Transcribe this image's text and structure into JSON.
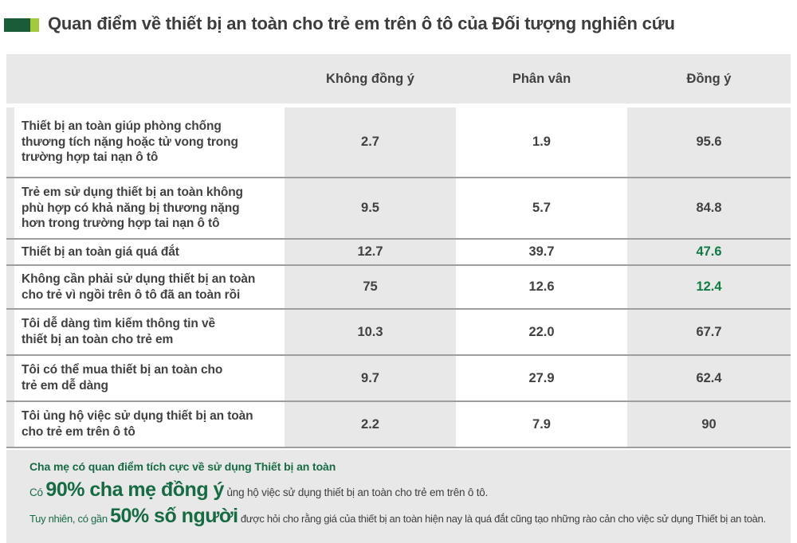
{
  "title": "Quan điểm về thiết bị an toàn cho trẻ em trên ô tô của Đối tượng nghiên cứu",
  "colors": {
    "icon_dark_green": "#1a5c38",
    "icon_light_green": "#a3ca3c",
    "table_background_gray": "#e8e8e8",
    "text_dark_gray": "#414141",
    "highlight_value_green": "#107c44",
    "footer_green": "#176b43",
    "row_divider_gray": "#9e9e9e"
  },
  "table": {
    "columns": [
      "Không đồng ý",
      "Phân vân",
      "Đồng ý"
    ],
    "rows": [
      {
        "label": "Thiết bị an toàn giúp phòng chống\nthương tích nặng hoặc tử vong trong\ntrường hợp tai nạn ô tô",
        "disagree": "2.7",
        "neutral": "1.9",
        "agree": "95.6"
      },
      {
        "label": "Trẻ em sử dụng thiết bị an toàn không\nphù hợp có khả năng bị thương nặng\nhơn trong trường hợp tai nạn ô tô",
        "disagree": "9.5",
        "neutral": "5.7",
        "agree": "84.8"
      },
      {
        "label": "Thiết bị an toàn giá quá đắt",
        "disagree": "12.7",
        "neutral": "39.7",
        "agree": "47.6"
      },
      {
        "label": "Không cần phải sử dụng thiết bị an toàn\ncho trẻ vì ngồi trên ô tô đã an toàn rồi",
        "disagree": "75",
        "neutral": "12.6",
        "agree": "12.4"
      },
      {
        "label": "Tôi dễ dàng tìm kiếm thông tin về\nthiết bị an toàn cho trẻ em",
        "disagree": "10.3",
        "neutral": "22.0",
        "agree": "67.7"
      },
      {
        "label": "Tôi có thể mua thiết bị an toàn cho\ntrẻ em dễ dàng",
        "disagree": "9.7",
        "neutral": "27.9",
        "agree": "62.4"
      },
      {
        "label": "Tôi ủng hộ việc sử dụng thiết bị an toàn\ncho trẻ em trên ô tô",
        "disagree": "2.2",
        "neutral": "7.9",
        "agree": "90"
      }
    ]
  },
  "footer": {
    "headline": "Cha mẹ có quan điểm tích cực về sử dụng Thiết bị an toàn",
    "line2_lead": "Có ",
    "line2_big": "90% cha mẹ đồng ý",
    "line2_tail": " ủng hộ việc sử dụng thiết bị an toàn cho trẻ em trên ô tô.",
    "line3_lead": "Tuy nhiên, có gần ",
    "line3_big": "50% số người",
    "line3_tail": " được hỏi cho rằng giá của thiết bị an toàn hiện nay là quá đắt cũng tạo những rào cản cho việc sử dụng Thiết bị an toàn."
  },
  "chart_data": {
    "type": "table",
    "title": "Quan điểm về thiết bị an toàn cho trẻ em trên ô tô của Đối tượng nghiên cứu",
    "columns": [
      "Không đồng ý",
      "Phân vân",
      "Đồng ý"
    ],
    "rows": [
      {
        "statement": "Thiết bị an toàn giúp phòng chống thương tích nặng hoặc tử vong trong trường hợp tai nạn ô tô",
        "values": [
          2.7,
          1.9,
          95.6
        ]
      },
      {
        "statement": "Trẻ em sử dụng thiết bị an toàn không phù hợp có khả năng bị thương nặng hơn trong trường hợp tai nạn ô tô",
        "values": [
          9.5,
          5.7,
          84.8
        ]
      },
      {
        "statement": "Thiết bị an toàn giá quá đắt",
        "values": [
          12.7,
          39.7,
          47.6
        ]
      },
      {
        "statement": "Không cần phải sử dụng thiết bị an toàn cho trẻ vì ngồi trên ô tô đã an toàn rồi",
        "values": [
          75,
          12.6,
          12.4
        ]
      },
      {
        "statement": "Tôi dễ dàng tìm kiếm thông tin về thiết bị an toàn cho trẻ em",
        "values": [
          10.3,
          22.0,
          67.7
        ]
      },
      {
        "statement": "Tôi có thể mua thiết bị an toàn cho trẻ em dễ dàng",
        "values": [
          9.7,
          27.9,
          62.4
        ]
      },
      {
        "statement": "Tôi ủng hộ việc sử dụng thiết bị an toàn cho trẻ em trên ô tô",
        "values": [
          2.2,
          7.9,
          90
        ]
      }
    ],
    "green_highlighted_agree_values": [
      47.6,
      12.4
    ],
    "values_unit": "percent"
  }
}
